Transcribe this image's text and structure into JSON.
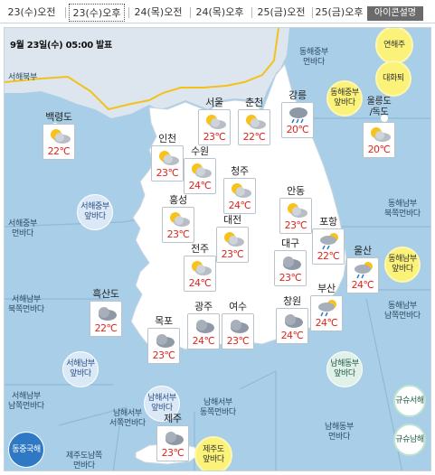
{
  "tabs": [
    {
      "label": "23(수)오전",
      "active": false
    },
    {
      "label": "23(수)오후",
      "active": true
    },
    {
      "label": "24(목)오전",
      "active": false
    },
    {
      "label": "24(목)오후",
      "active": false
    },
    {
      "label": "25(금)오전",
      "active": false
    },
    {
      "label": "25(금)오후",
      "active": false
    }
  ],
  "help_label": "아이콘설명",
  "announcement": "9월 23일(수) 05:00 발표",
  "seas": {
    "west_north": "서해북부",
    "west_central_far": "서해중부\n먼바다",
    "west_south_north_far": "서해남부\n북쪽먼바다",
    "west_south_south_far": "서해남부\n남쪽먼바다",
    "east_central_far": "동해중부\n먼바다",
    "east_south_north_far": "동해남부\n북쪽먼바다",
    "east_south_south_far": "동해남부\n남쪽먼바다",
    "south_west_west_far": "남해서부\n서쪽먼바다",
    "south_west_east_far": "남해서부\n동쪽먼바다",
    "south_east_far": "남해동부\n먼바다",
    "jeju_south_far": "제주도남쪽\n먼바다"
  },
  "circles": {
    "yeonhae": "연해주",
    "daehwa": "대화퇴",
    "east_central_near": "동해중부\n앞바다",
    "east_south_near": "동해남부\n앞바다",
    "west_central_near": "서해중부\n앞바다",
    "west_south_near": "서해남부\n앞바다",
    "south_west_near": "남해서부\n앞바다",
    "south_east_near": "남해동부\n앞바다",
    "jeju_near": "제주도\n앞바다",
    "east_china_sea": "동중국해",
    "kyushu_west": "규슈서해",
    "kyushu_south": "규슈남해"
  },
  "stations": [
    {
      "name": "백령도",
      "temp": "22℃",
      "icon": "partly-cloudy-icon"
    },
    {
      "name": "서울",
      "temp": "23℃",
      "icon": "partly-cloudy-icon"
    },
    {
      "name": "춘천",
      "temp": "22℃",
      "icon": "partly-cloudy-icon"
    },
    {
      "name": "강릉",
      "temp": "20℃",
      "icon": "rain-icon"
    },
    {
      "name": "울릉도\n/독도",
      "temp": "20℃",
      "icon": "partly-cloudy-icon"
    },
    {
      "name": "인천",
      "temp": "23℃",
      "icon": "partly-cloudy-icon"
    },
    {
      "name": "수원",
      "temp": "24℃",
      "icon": "partly-cloudy-icon"
    },
    {
      "name": "청주",
      "temp": "24℃",
      "icon": "partly-cloudy-icon"
    },
    {
      "name": "안동",
      "temp": "23℃",
      "icon": "partly-cloudy-icon"
    },
    {
      "name": "홍성",
      "temp": "23℃",
      "icon": "partly-cloudy-icon"
    },
    {
      "name": "대전",
      "temp": "23℃",
      "icon": "partly-cloudy-icon"
    },
    {
      "name": "포항",
      "temp": "22℃",
      "icon": "rain-icon"
    },
    {
      "name": "대구",
      "temp": "23℃",
      "icon": "cloudy-icon"
    },
    {
      "name": "울산",
      "temp": "24℃",
      "icon": "rain-icon"
    },
    {
      "name": "전주",
      "temp": "24℃",
      "icon": "partly-cloudy-icon"
    },
    {
      "name": "흑산도",
      "temp": "22℃",
      "icon": "cloudy-icon"
    },
    {
      "name": "부산",
      "temp": "24℃",
      "icon": "rain-icon"
    },
    {
      "name": "창원",
      "temp": "24℃",
      "icon": "cloudy-icon"
    },
    {
      "name": "목포",
      "temp": "23℃",
      "icon": "cloudy-icon"
    },
    {
      "name": "광주",
      "temp": "24℃",
      "icon": "cloudy-icon"
    },
    {
      "name": "여수",
      "temp": "23℃",
      "icon": "cloudy-icon"
    },
    {
      "name": "제주",
      "temp": "23℃",
      "icon": "cloudy-icon"
    }
  ],
  "colors": {
    "sea": "#a9cfe8",
    "land": "#ffffff",
    "temperature": "#e2241b",
    "border_line": "#f2c21a"
  }
}
